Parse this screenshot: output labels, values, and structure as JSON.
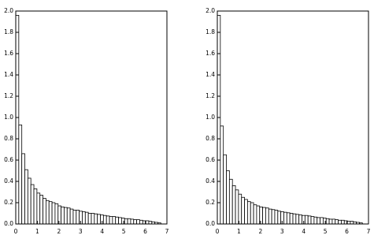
{
  "chart_data": [
    {
      "type": "histogram",
      "bins": [
        0,
        0.14,
        0.28,
        0.42,
        0.56,
        0.7,
        0.84,
        0.98,
        1.12,
        1.26,
        1.4,
        1.54,
        1.68,
        1.82,
        1.96,
        2.1,
        2.24,
        2.38,
        2.52,
        2.66,
        2.8,
        2.94,
        3.08,
        3.22,
        3.36,
        3.5,
        3.64,
        3.78,
        3.92,
        4.06,
        4.2,
        4.34,
        4.48,
        4.62,
        4.76,
        4.9,
        5.04,
        5.18,
        5.32,
        5.46,
        5.6,
        5.74,
        5.88,
        6.02,
        6.16,
        6.3,
        6.44,
        6.58,
        6.72
      ],
      "values": [
        1.96,
        0.93,
        0.66,
        0.51,
        0.43,
        0.37,
        0.33,
        0.29,
        0.27,
        0.24,
        0.22,
        0.21,
        0.2,
        0.19,
        0.17,
        0.16,
        0.155,
        0.15,
        0.14,
        0.13,
        0.13,
        0.12,
        0.115,
        0.11,
        0.1,
        0.1,
        0.095,
        0.09,
        0.085,
        0.08,
        0.075,
        0.07,
        0.07,
        0.065,
        0.06,
        0.055,
        0.05,
        0.05,
        0.045,
        0.04,
        0.04,
        0.035,
        0.03,
        0.03,
        0.025,
        0.02,
        0.015,
        0.01
      ],
      "color": "#ffffff",
      "xlim": [
        0,
        7
      ],
      "xticks": [
        0,
        1,
        2,
        3,
        4,
        5,
        6,
        7
      ],
      "ylim": [
        0,
        2
      ],
      "yticks": [
        {
          "value": 0,
          "label": "0.0"
        },
        0.2,
        0.4,
        0.6,
        0.8,
        {
          "value": 1,
          "label": "1.0"
        },
        1.2,
        1.4,
        1.6,
        1.8,
        {
          "value": 2,
          "label": "2.0"
        }
      ]
    },
    {
      "type": "histogram",
      "bins": [
        0,
        0.14,
        0.28,
        0.42,
        0.56,
        0.7,
        0.84,
        0.98,
        1.12,
        1.26,
        1.4,
        1.54,
        1.68,
        1.82,
        1.96,
        2.1,
        2.24,
        2.38,
        2.52,
        2.66,
        2.8,
        2.94,
        3.08,
        3.22,
        3.36,
        3.5,
        3.64,
        3.78,
        3.92,
        4.06,
        4.2,
        4.34,
        4.48,
        4.62,
        4.76,
        4.9,
        5.04,
        5.18,
        5.32,
        5.46,
        5.6,
        5.74,
        5.88,
        6.02,
        6.16,
        6.3,
        6.44,
        6.58,
        6.72
      ],
      "values": [
        1.96,
        0.92,
        0.65,
        0.5,
        0.42,
        0.36,
        0.32,
        0.28,
        0.25,
        0.23,
        0.21,
        0.2,
        0.18,
        0.17,
        0.16,
        0.155,
        0.15,
        0.14,
        0.135,
        0.13,
        0.12,
        0.115,
        0.11,
        0.105,
        0.1,
        0.095,
        0.09,
        0.085,
        0.08,
        0.08,
        0.075,
        0.07,
        0.065,
        0.06,
        0.06,
        0.055,
        0.05,
        0.045,
        0.045,
        0.04,
        0.035,
        0.035,
        0.03,
        0.025,
        0.025,
        0.02,
        0.015,
        0.01
      ],
      "color": "#ffffff",
      "xlim": [
        0,
        7
      ],
      "xticks": [
        0,
        1,
        2,
        3,
        4,
        5,
        6,
        7
      ],
      "ylim": [
        0,
        2
      ],
      "yticks": [
        {
          "value": 0,
          "label": "0.0"
        },
        0.2,
        0.4,
        0.6,
        0.8,
        {
          "value": 1,
          "label": "1.0"
        },
        1.2,
        1.4,
        1.6,
        1.8,
        {
          "value": 2,
          "label": "2.0"
        }
      ]
    }
  ]
}
